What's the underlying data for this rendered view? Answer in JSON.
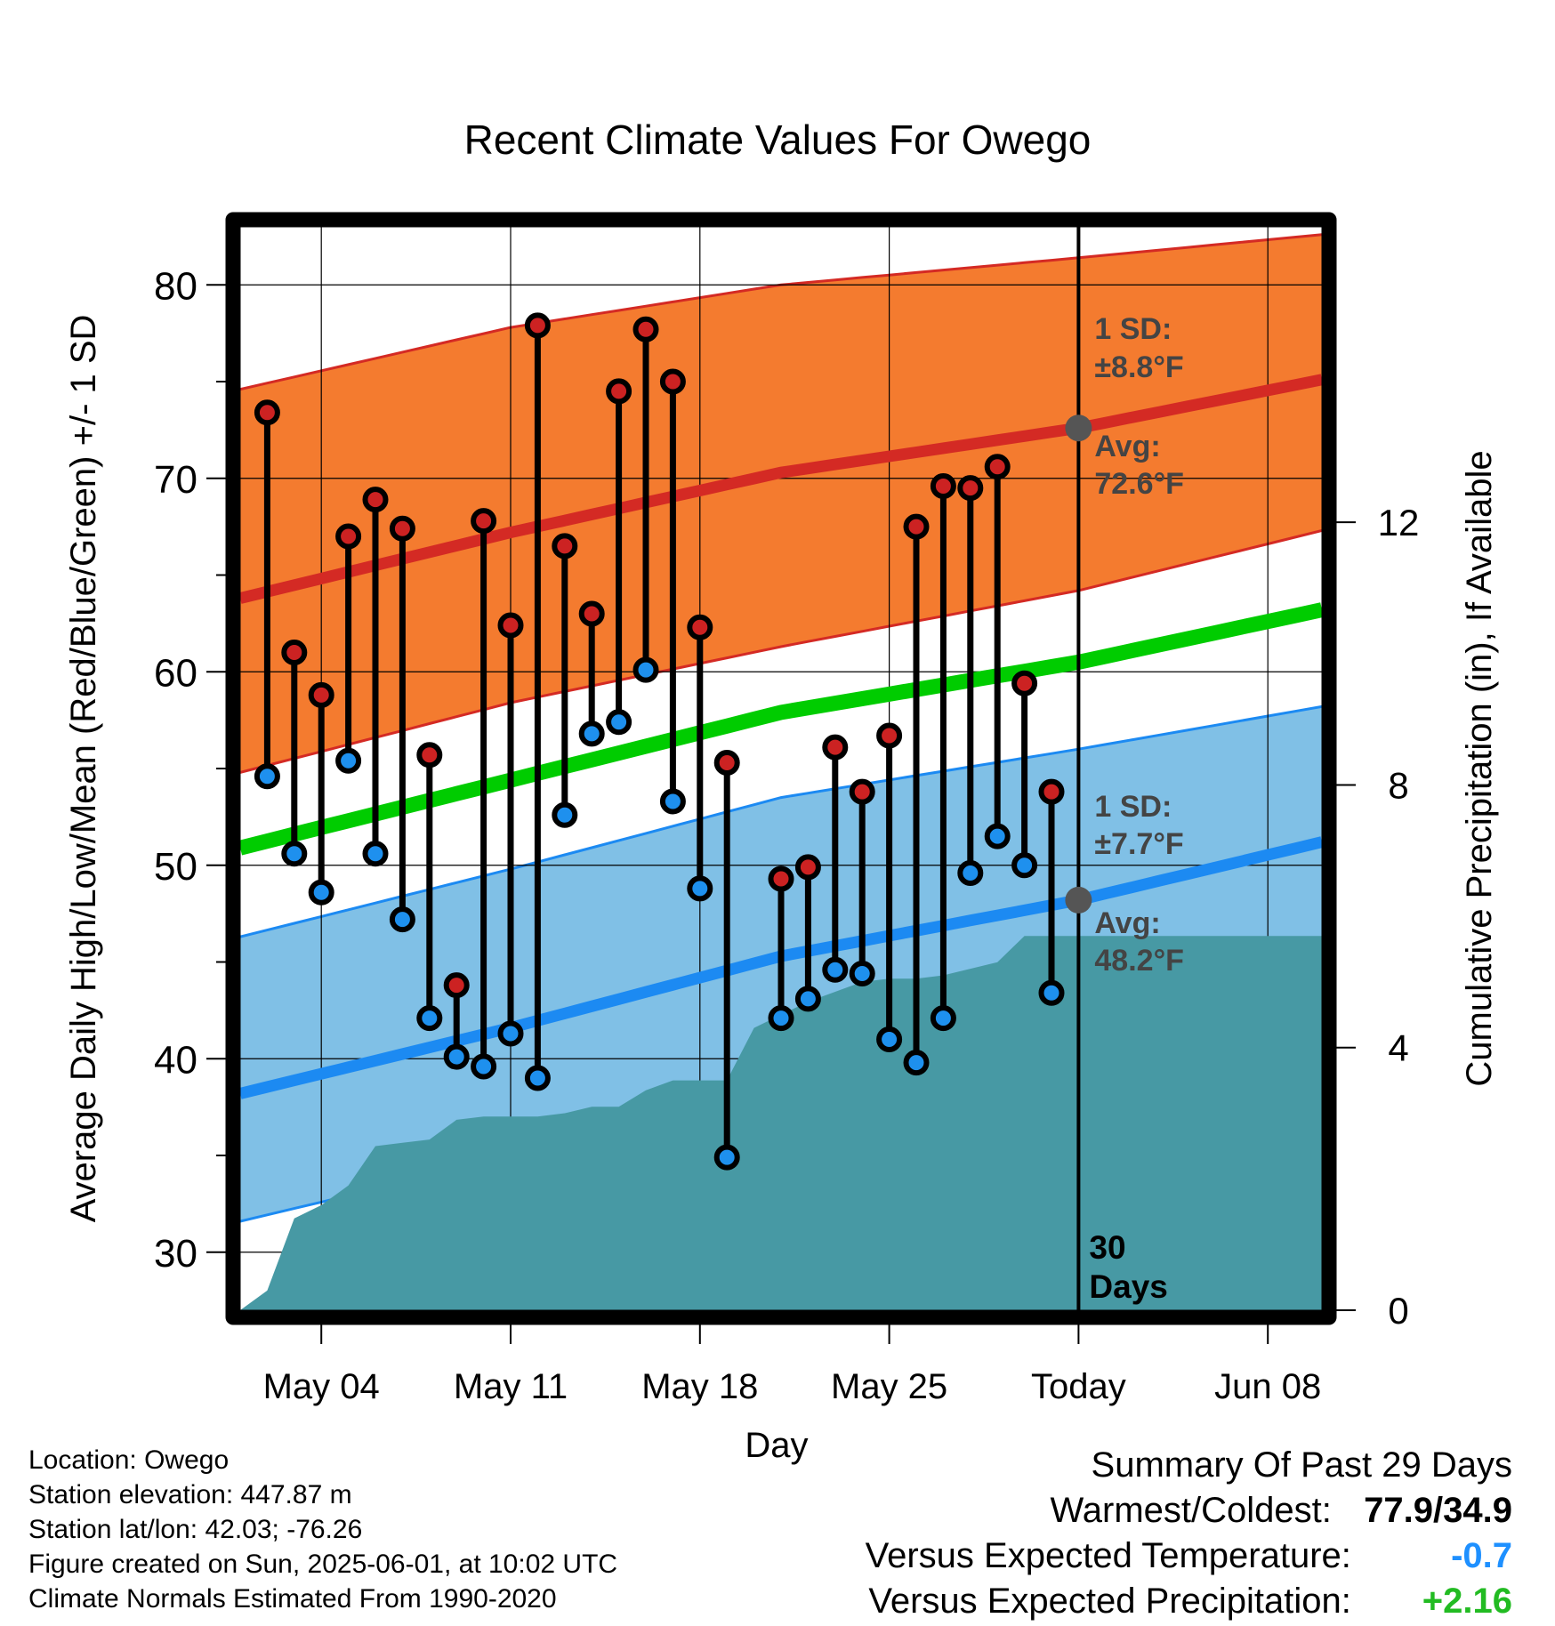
{
  "title": "Recent Climate Values For Owego",
  "chart_data": {
    "type": "line",
    "title": "Recent Climate Values For Owego",
    "xlabel": "Day",
    "ylabel": "Average Daily High/Low/Mean (Red/Blue/Green) +/- 1 SD",
    "y2label": "Cumulative Precipitation (in), If Available",
    "x_tick_labels": [
      {
        "day": "2025-05-04",
        "label": "May 04"
      },
      {
        "day": "2025-05-11",
        "label": "May 11"
      },
      {
        "day": "2025-05-18",
        "label": "May 18"
      },
      {
        "day": "2025-05-25",
        "label": "May 25"
      },
      {
        "day": "2025-06-01",
        "label": "Today"
      },
      {
        "day": "2025-06-08",
        "label": "Jun 08"
      }
    ],
    "xlim": [
      "2025-05-01",
      "2025-06-10"
    ],
    "ylim": [
      27,
      83
    ],
    "y_ticks": [
      30,
      40,
      50,
      60,
      70,
      80
    ],
    "y2lim": [
      0,
      16.5
    ],
    "y2_ticks": [
      0,
      4,
      8,
      12
    ],
    "grid": true,
    "colors": {
      "high_band": "#f47b2f",
      "high_line": "#d42a24",
      "low_band": "#80c0e6",
      "low_line": "#1c8af2",
      "mean_line": "#00cc00",
      "precip": "#4799a4",
      "high_dot": "#cc2222",
      "low_dot": "#1e90ee",
      "marker": "#555555",
      "vs_temp": "#1e90ff",
      "vs_precip": "#22bb22"
    },
    "normals": [
      {
        "day": "2025-05-01",
        "high": 63.8,
        "high_upper": 74.6,
        "high_lower": 54.8,
        "low": 38.2,
        "low_upper": 46.3,
        "low_lower": 31.6,
        "mean": 50.9
      },
      {
        "day": "2025-05-11",
        "high": 67.2,
        "high_upper": 77.8,
        "high_lower": 58.4,
        "low": 41.6,
        "low_upper": 49.8,
        "low_lower": 34.9,
        "mean": 54.4
      },
      {
        "day": "2025-05-21",
        "high": 70.3,
        "high_upper": 80.0,
        "high_lower": 61.3,
        "low": 45.3,
        "low_upper": 53.5,
        "low_lower": 38.4,
        "mean": 57.9
      },
      {
        "day": "2025-06-01",
        "high": 72.6,
        "high_upper": 81.4,
        "high_lower": 64.2,
        "low": 48.2,
        "low_upper": 56.0,
        "low_lower": 41.3,
        "mean": 60.5
      },
      {
        "day": "2025-06-10",
        "high": 75.1,
        "high_upper": 82.6,
        "high_lower": 67.3,
        "low": 51.2,
        "low_upper": 58.2,
        "low_lower": 44.8,
        "mean": 63.2
      }
    ],
    "series": [
      {
        "name": "High",
        "x": [
          "2025-05-02",
          "2025-05-03",
          "2025-05-04",
          "2025-05-05",
          "2025-05-06",
          "2025-05-07",
          "2025-05-08",
          "2025-05-09",
          "2025-05-10",
          "2025-05-11",
          "2025-05-12",
          "2025-05-13",
          "2025-05-14",
          "2025-05-15",
          "2025-05-16",
          "2025-05-17",
          "2025-05-18",
          "2025-05-19",
          "2025-05-21",
          "2025-05-22",
          "2025-05-23",
          "2025-05-24",
          "2025-05-25",
          "2025-05-26",
          "2025-05-27",
          "2025-05-28",
          "2025-05-29",
          "2025-05-30",
          "2025-05-31"
        ],
        "values": [
          73.4,
          61.0,
          58.8,
          67.0,
          68.9,
          67.4,
          55.7,
          43.8,
          67.8,
          62.4,
          77.9,
          66.5,
          63.0,
          74.5,
          77.7,
          75.0,
          62.3,
          55.3,
          49.3,
          49.9,
          56.1,
          53.8,
          56.7,
          67.5,
          69.6,
          69.5,
          70.6,
          59.4,
          53.8
        ]
      },
      {
        "name": "Low",
        "x": [
          "2025-05-02",
          "2025-05-03",
          "2025-05-04",
          "2025-05-05",
          "2025-05-06",
          "2025-05-07",
          "2025-05-08",
          "2025-05-09",
          "2025-05-10",
          "2025-05-11",
          "2025-05-12",
          "2025-05-13",
          "2025-05-14",
          "2025-05-15",
          "2025-05-16",
          "2025-05-17",
          "2025-05-18",
          "2025-05-19",
          "2025-05-21",
          "2025-05-22",
          "2025-05-23",
          "2025-05-24",
          "2025-05-25",
          "2025-05-26",
          "2025-05-27",
          "2025-05-28",
          "2025-05-29",
          "2025-05-30",
          "2025-05-31"
        ],
        "values": [
          54.6,
          50.6,
          48.6,
          55.4,
          50.6,
          47.2,
          42.1,
          40.1,
          39.6,
          41.3,
          39.0,
          52.6,
          56.8,
          57.4,
          60.1,
          53.3,
          48.8,
          34.9,
          42.1,
          43.1,
          44.6,
          44.4,
          41.0,
          39.8,
          42.1,
          49.6,
          51.5,
          50.0,
          43.4
        ]
      }
    ],
    "precip": {
      "x": [
        "2025-05-01",
        "2025-05-02",
        "2025-05-03",
        "2025-05-04",
        "2025-05-05",
        "2025-05-06",
        "2025-05-07",
        "2025-05-08",
        "2025-05-09",
        "2025-05-10",
        "2025-05-11",
        "2025-05-12",
        "2025-05-13",
        "2025-05-14",
        "2025-05-15",
        "2025-05-16",
        "2025-05-17",
        "2025-05-18",
        "2025-05-19",
        "2025-05-20",
        "2025-05-21",
        "2025-05-22",
        "2025-05-23",
        "2025-05-24",
        "2025-05-25",
        "2025-05-26",
        "2025-05-27",
        "2025-05-28",
        "2025-05-29",
        "2025-05-30",
        "2025-05-31",
        "2025-06-10"
      ],
      "values": [
        0.0,
        0.3,
        1.4,
        1.6,
        1.9,
        2.5,
        2.55,
        2.6,
        2.9,
        2.95,
        2.95,
        2.95,
        3.0,
        3.1,
        3.1,
        3.35,
        3.5,
        3.5,
        3.5,
        4.3,
        4.5,
        4.7,
        4.85,
        5.0,
        5.05,
        5.05,
        5.1,
        5.2,
        5.3,
        5.7,
        5.7,
        5.7
      ]
    },
    "annotations": {
      "high_sd": "1 SD:",
      "high_sd_value": "±8.8°F",
      "high_avg": "Avg:",
      "high_avg_value": "72.6°F",
      "low_sd": "1 SD:",
      "low_sd_value": "±7.7°F",
      "low_avg": "Avg:",
      "low_avg_value": "48.2°F",
      "days_count": "30",
      "days_label": "Days"
    }
  },
  "footer": {
    "location": "Location: Owego",
    "elevation": "Station elevation: 447.87 m",
    "latlon": "Station lat/lon: 42.03; -76.26",
    "created": "Figure created on Sun, 2025-06-01, at 10:02 UTC",
    "normals": "Climate Normals Estimated From 1990-2020"
  },
  "summary": {
    "heading": "Summary Of Past 29 Days",
    "warm_cold_label": "Warmest/Coldest:",
    "warm_cold_value": "77.9/34.9",
    "vs_temp_label": "Versus Expected Temperature:",
    "vs_temp_value": "-0.7",
    "vs_precip_label": "Versus Expected Precipitation:",
    "vs_precip_value": "+2.16"
  }
}
